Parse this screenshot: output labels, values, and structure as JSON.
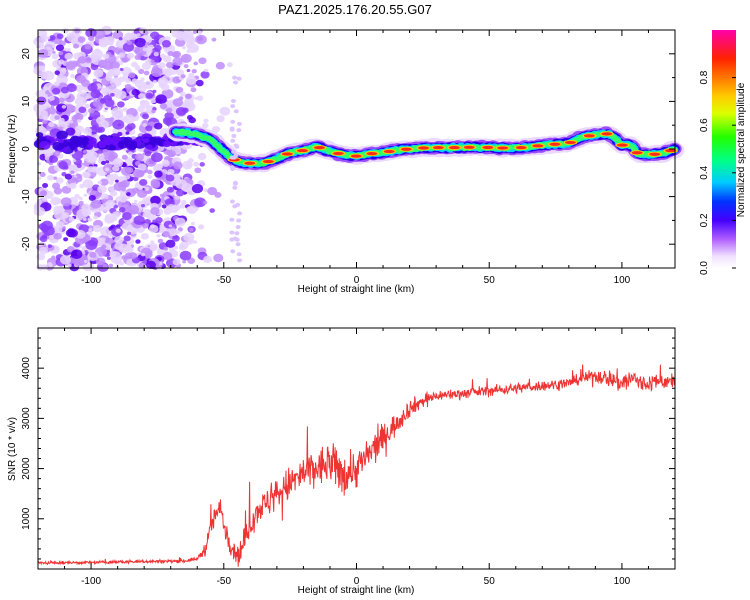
{
  "title": "PAZ1.2025.176.20.55.G07",
  "chart_data": [
    {
      "type": "heatmap",
      "xlabel": "Height of straight line (km)",
      "ylabel": "Frequency (Hz)",
      "xlim": [
        -120,
        120
      ],
      "ylim": [
        -25,
        25
      ],
      "xticks": [
        -100,
        -50,
        0,
        50,
        100
      ],
      "yticks": [
        -20,
        -10,
        0,
        10,
        20
      ],
      "colorbar": {
        "label": "Normalized spectral amplitude",
        "range": [
          0,
          1
        ],
        "ticks": [
          0.0,
          0.2,
          0.4,
          0.6,
          0.8
        ]
      },
      "ridge": {
        "x": [
          -65,
          -60,
          -55,
          -50,
          -47,
          -44,
          -40,
          -35,
          -30,
          -25,
          -20,
          -15,
          -10,
          -5,
          0,
          5,
          10,
          15,
          20,
          25,
          30,
          35,
          40,
          45,
          50,
          55,
          60,
          65,
          70,
          75,
          80,
          85,
          90,
          95,
          98,
          100,
          102,
          104,
          106,
          110,
          115,
          120
        ],
        "y": [
          3.5,
          3.0,
          2.0,
          -0.5,
          -2.0,
          -2.8,
          -3.0,
          -3.0,
          -2.0,
          -0.8,
          -0.3,
          0.5,
          -0.5,
          -1.2,
          -1.5,
          -1.0,
          -0.8,
          -0.2,
          0.0,
          0.2,
          0.3,
          0.3,
          0.3,
          0.4,
          0.3,
          0.2,
          0.2,
          0.4,
          0.8,
          1.0,
          1.2,
          2.5,
          3.0,
          3.2,
          2.0,
          0.8,
          1.0,
          0.5,
          -1.0,
          -1.2,
          -1.0,
          0.0
        ]
      }
    },
    {
      "type": "line",
      "xlabel": "Height of straight line (km)",
      "ylabel": "SNR (10 * v/v)",
      "xlim": [
        -120,
        120
      ],
      "ylim": [
        0,
        4800
      ],
      "xticks": [
        -100,
        -50,
        0,
        50,
        100
      ],
      "yticks": [
        1000,
        2000,
        3000,
        4000
      ],
      "series": [
        {
          "color": "#ee3333",
          "envelope": {
            "x": [
              -120,
              -100,
              -80,
              -65,
              -60,
              -57,
              -55,
              -53,
              -51,
              -50,
              -48,
              -46,
              -44,
              -42,
              -40,
              -37,
              -34,
              -30,
              -25,
              -20,
              -15,
              -10,
              -5,
              0,
              5,
              10,
              15,
              20,
              25,
              30,
              40,
              50,
              60,
              70,
              80,
              85,
              90,
              95,
              100,
              102,
              105,
              108,
              110,
              115,
              120
            ],
            "y": [
              120,
              130,
              150,
              160,
              200,
              400,
              800,
              1100,
              1200,
              900,
              600,
              350,
              300,
              600,
              900,
              1200,
              1300,
              1500,
              1700,
              1900,
              2000,
              2100,
              1900,
              2000,
              2300,
              2600,
              2900,
              3200,
              3350,
              3450,
              3500,
              3550,
              3600,
              3650,
              3700,
              3800,
              3850,
              3800,
              3700,
              3750,
              3800,
              3650,
              3700,
              3750,
              3700
            ]
          },
          "noise": {
            "x": [
              -120,
              -60,
              -55,
              -35,
              -20,
              -5,
              5,
              20,
              30,
              85,
              95,
              100,
              110,
              120
            ],
            "amplitude": [
              45,
              60,
              350,
              500,
              650,
              750,
              600,
              300,
              180,
              180,
              300,
              400,
              300,
              250
            ]
          }
        }
      ]
    }
  ]
}
